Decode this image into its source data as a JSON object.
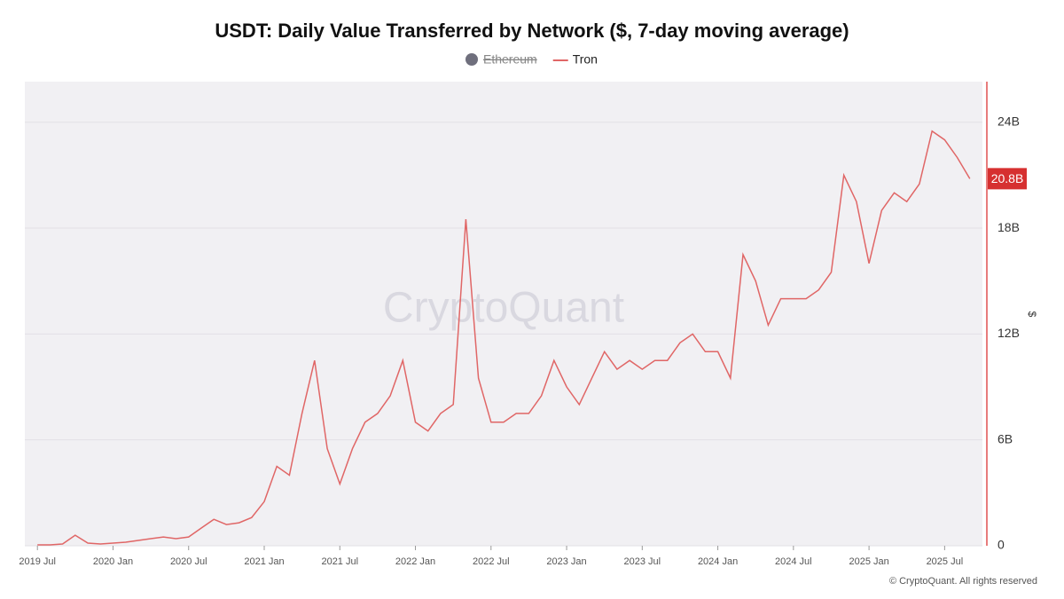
{
  "chart_data": {
    "type": "line",
    "title": "USDT: Daily Value Transferred by Network ($, 7-day moving average)",
    "watermark": "CryptoQuant",
    "footer": "© CryptoQuant. All rights reserved",
    "y_axis_label": "$",
    "x": [
      "2019-07",
      "2019-08",
      "2019-09",
      "2019-10",
      "2019-11",
      "2019-12",
      "2020-01",
      "2020-02",
      "2020-03",
      "2020-04",
      "2020-05",
      "2020-06",
      "2020-07",
      "2020-08",
      "2020-09",
      "2020-10",
      "2020-11",
      "2020-12",
      "2021-01",
      "2021-02",
      "2021-03",
      "2021-04",
      "2021-05",
      "2021-06",
      "2021-07",
      "2021-08",
      "2021-09",
      "2021-10",
      "2021-11",
      "2021-12",
      "2022-01",
      "2022-02",
      "2022-03",
      "2022-04",
      "2022-05",
      "2022-06",
      "2022-07",
      "2022-08",
      "2022-09",
      "2022-10",
      "2022-11",
      "2022-12",
      "2023-01",
      "2023-02",
      "2023-03",
      "2023-04",
      "2023-05",
      "2023-06",
      "2023-07",
      "2023-08",
      "2023-09",
      "2023-10",
      "2023-11",
      "2023-12",
      "2024-01",
      "2024-02",
      "2024-03",
      "2024-04",
      "2024-05",
      "2024-06",
      "2024-07",
      "2024-08",
      "2024-09",
      "2024-10",
      "2024-11",
      "2024-12",
      "2025-01",
      "2025-02",
      "2025-03",
      "2025-04",
      "2025-05",
      "2025-06",
      "2025-07",
      "2025-08",
      "2025-09"
    ],
    "series": [
      {
        "name": "Ethereum",
        "color": "#6f6f7d",
        "hidden": true
      },
      {
        "name": "Tron",
        "color": "#e06666",
        "values": [
          50000000.0,
          50000000.0,
          100000000.0,
          600000000.0,
          150000000.0,
          100000000.0,
          150000000.0,
          200000000.0,
          300000000.0,
          400000000.0,
          500000000.0,
          400000000.0,
          500000000.0,
          1000000000.0,
          1500000000.0,
          1200000000.0,
          1300000000.0,
          1600000000.0,
          2500000000.0,
          4500000000.0,
          4000000000.0,
          7500000000.0,
          10500000000.0,
          5500000000.0,
          3500000000.0,
          5500000000.0,
          7000000000.0,
          7500000000.0,
          8500000000.0,
          10500000000.0,
          7000000000.0,
          6500000000.0,
          7500000000.0,
          8000000000.0,
          18500000000.0,
          9500000000.0,
          7000000000.0,
          7000000000.0,
          7500000000.0,
          7500000000.0,
          8500000000.0,
          10500000000.0,
          9000000000.0,
          8000000000.0,
          9500000000.0,
          11000000000.0,
          10000000000.0,
          10500000000.0,
          10000000000.0,
          10500000000.0,
          10500000000.0,
          11500000000.0,
          12000000000.0,
          11000000000.0,
          11000000000.0,
          9500000000.0,
          16500000000.0,
          15000000000.0,
          12500000000.0,
          14000000000.0,
          14000000000.0,
          14000000000.0,
          14500000000.0,
          15500000000.0,
          21000000000.0,
          19500000000.0,
          16000000000.0,
          19000000000.0,
          20000000000.0,
          19500000000.0,
          20500000000.0,
          23500000000.0,
          23000000000.0,
          22000000000.0,
          20800000000.0
        ]
      }
    ],
    "xlim": [
      "2019-06",
      "2025-10"
    ],
    "xticks": [
      {
        "value": "2019-07",
        "label": "2019 Jul"
      },
      {
        "value": "2020-01",
        "label": "2020 Jan"
      },
      {
        "value": "2020-07",
        "label": "2020 Jul"
      },
      {
        "value": "2021-01",
        "label": "2021 Jan"
      },
      {
        "value": "2021-07",
        "label": "2021 Jul"
      },
      {
        "value": "2022-01",
        "label": "2022 Jan"
      },
      {
        "value": "2022-07",
        "label": "2022 Jul"
      },
      {
        "value": "2023-01",
        "label": "2023 Jan"
      },
      {
        "value": "2023-07",
        "label": "2023 Jul"
      },
      {
        "value": "2024-01",
        "label": "2024 Jan"
      },
      {
        "value": "2024-07",
        "label": "2024 Jul"
      },
      {
        "value": "2025-01",
        "label": "2025 Jan"
      },
      {
        "value": "2025-07",
        "label": "2025 Jul"
      }
    ],
    "ylim": [
      0,
      26300000000
    ],
    "yticks": [
      0,
      {
        "value": 6000000000,
        "label": "6B"
      },
      {
        "value": 12000000000,
        "label": "12B"
      },
      {
        "value": 18000000000,
        "label": "18B"
      },
      {
        "value": 24000000000,
        "label": "24B"
      }
    ],
    "grid": true,
    "legend": "top",
    "current_value": {
      "value": 20800000000,
      "label": "20.8B"
    }
  }
}
